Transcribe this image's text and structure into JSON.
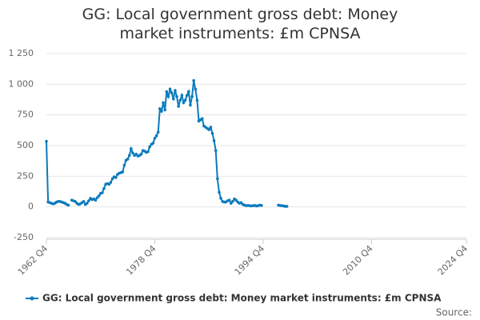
{
  "chart_data": {
    "type": "line",
    "title": "GG: Local government gross debt: Money market instruments: £m CPNSA",
    "source": "Source:",
    "categories": [
      "1962 Q4",
      null,
      null,
      null,
      null,
      null,
      null,
      null,
      null,
      null,
      null,
      null,
      null,
      null,
      null,
      null,
      null,
      null,
      null,
      null,
      null,
      null,
      null,
      null,
      null,
      null,
      null,
      null,
      null,
      null,
      null,
      null,
      null,
      null,
      null,
      null,
      null,
      null,
      null,
      null,
      null,
      null,
      null,
      null,
      null,
      null,
      null,
      null,
      null,
      null,
      null,
      null,
      null,
      null,
      null,
      null,
      null,
      null,
      null,
      null,
      null,
      null,
      null,
      null,
      "1978 Q4",
      null,
      null,
      null,
      null,
      null,
      null,
      null,
      null,
      null,
      null,
      null,
      null,
      null,
      null,
      null,
      null,
      null,
      null,
      null,
      null,
      null,
      null,
      null,
      null,
      null,
      null,
      null,
      null,
      null,
      null,
      null,
      null,
      null,
      null,
      null,
      null,
      null,
      null,
      null,
      null,
      null,
      null,
      null,
      null,
      null,
      null,
      null,
      null,
      null,
      null,
      null,
      null,
      null,
      null,
      null,
      null,
      null,
      null,
      null,
      null,
      null,
      null,
      null,
      "1994 Q4",
      null,
      null,
      null,
      null,
      null,
      null,
      null,
      null,
      null,
      null,
      null,
      null,
      null,
      null,
      null,
      null,
      null,
      null,
      null,
      null,
      null,
      null,
      null,
      null,
      null,
      null,
      null,
      null,
      null,
      null,
      null,
      null,
      null,
      null,
      null,
      null,
      null,
      null,
      null,
      null,
      null,
      null,
      null,
      null,
      null,
      null,
      null,
      null,
      null,
      null,
      null,
      null,
      null,
      null,
      null,
      null,
      null,
      null,
      null,
      null,
      null,
      null,
      null,
      "2010 Q4",
      null,
      null,
      null,
      null,
      null,
      null,
      null,
      null,
      null,
      null,
      null,
      null,
      null,
      null,
      null,
      null,
      null,
      null,
      null,
      null,
      null,
      null,
      null,
      null,
      null,
      null,
      null,
      null,
      null,
      null,
      null,
      null,
      null,
      null,
      null,
      null,
      null,
      null,
      null,
      null,
      null,
      null,
      null,
      null,
      null,
      null,
      null,
      null,
      null,
      null,
      null,
      null,
      null,
      null,
      null,
      "2024 Q4"
    ],
    "series": [
      {
        "name": "GG: Local government gross debt: Money market instruments: £m CPNSA",
        "color": "#0a7bbd",
        "values": [
          535,
          40,
          35,
          30,
          25,
          30,
          40,
          45,
          45,
          40,
          35,
          30,
          20,
          15,
          null,
          55,
          50,
          45,
          30,
          20,
          25,
          35,
          45,
          20,
          30,
          50,
          70,
          60,
          65,
          55,
          75,
          90,
          110,
          115,
          150,
          185,
          190,
          185,
          200,
          230,
          245,
          240,
          265,
          275,
          280,
          285,
          340,
          380,
          390,
          420,
          475,
          440,
          420,
          430,
          415,
          420,
          430,
          460,
          455,
          445,
          450,
          490,
          510,
          520,
          560,
          580,
          610,
          800,
          780,
          850,
          790,
          940,
          900,
          960,
          930,
          880,
          950,
          900,
          820,
          870,
          910,
          850,
          870,
          910,
          940,
          830,
          900,
          1030,
          960,
          870,
          700,
          710,
          720,
          660,
          650,
          640,
          630,
          650,
          600,
          540,
          460,
          230,
          120,
          70,
          45,
          40,
          40,
          50,
          55,
          30,
          45,
          65,
          55,
          40,
          30,
          35,
          20,
          15,
          10,
          12,
          10,
          8,
          10,
          12,
          8,
          10,
          15,
          12,
          null,
          null,
          null,
          null,
          null,
          null,
          null,
          null,
          null,
          15,
          12,
          10,
          8,
          5,
          5,
          null,
          null,
          null,
          null,
          null,
          null,
          null,
          null,
          null,
          null,
          null,
          null,
          null,
          null,
          null,
          null,
          null,
          null,
          null,
          null,
          null,
          null,
          null,
          null,
          null,
          null,
          null,
          null,
          null,
          null,
          null,
          null,
          null,
          null,
          null,
          null,
          null,
          null,
          null,
          null,
          null,
          null,
          null,
          null,
          null,
          null,
          null,
          null,
          null,
          null,
          null,
          null,
          null,
          null,
          null,
          null,
          null,
          null,
          null,
          null,
          null,
          null,
          null,
          null,
          null,
          null,
          null,
          null,
          null,
          null,
          null,
          null,
          null,
          null,
          null,
          null,
          null,
          null,
          null,
          null,
          null,
          null,
          null,
          null,
          null,
          null,
          null,
          null,
          null,
          null,
          null,
          null,
          null,
          null,
          null,
          null,
          null,
          null,
          null,
          null,
          null,
          null,
          null,
          null,
          null,
          null
        ]
      }
    ],
    "ylim": [
      -250,
      1250
    ],
    "yticks": [
      -250,
      0,
      250,
      500,
      750,
      {
        "value": 1000,
        "label": "1 000"
      },
      {
        "value": 1250,
        "label": "1 250"
      }
    ],
    "grid": true,
    "legend": "bottom"
  }
}
